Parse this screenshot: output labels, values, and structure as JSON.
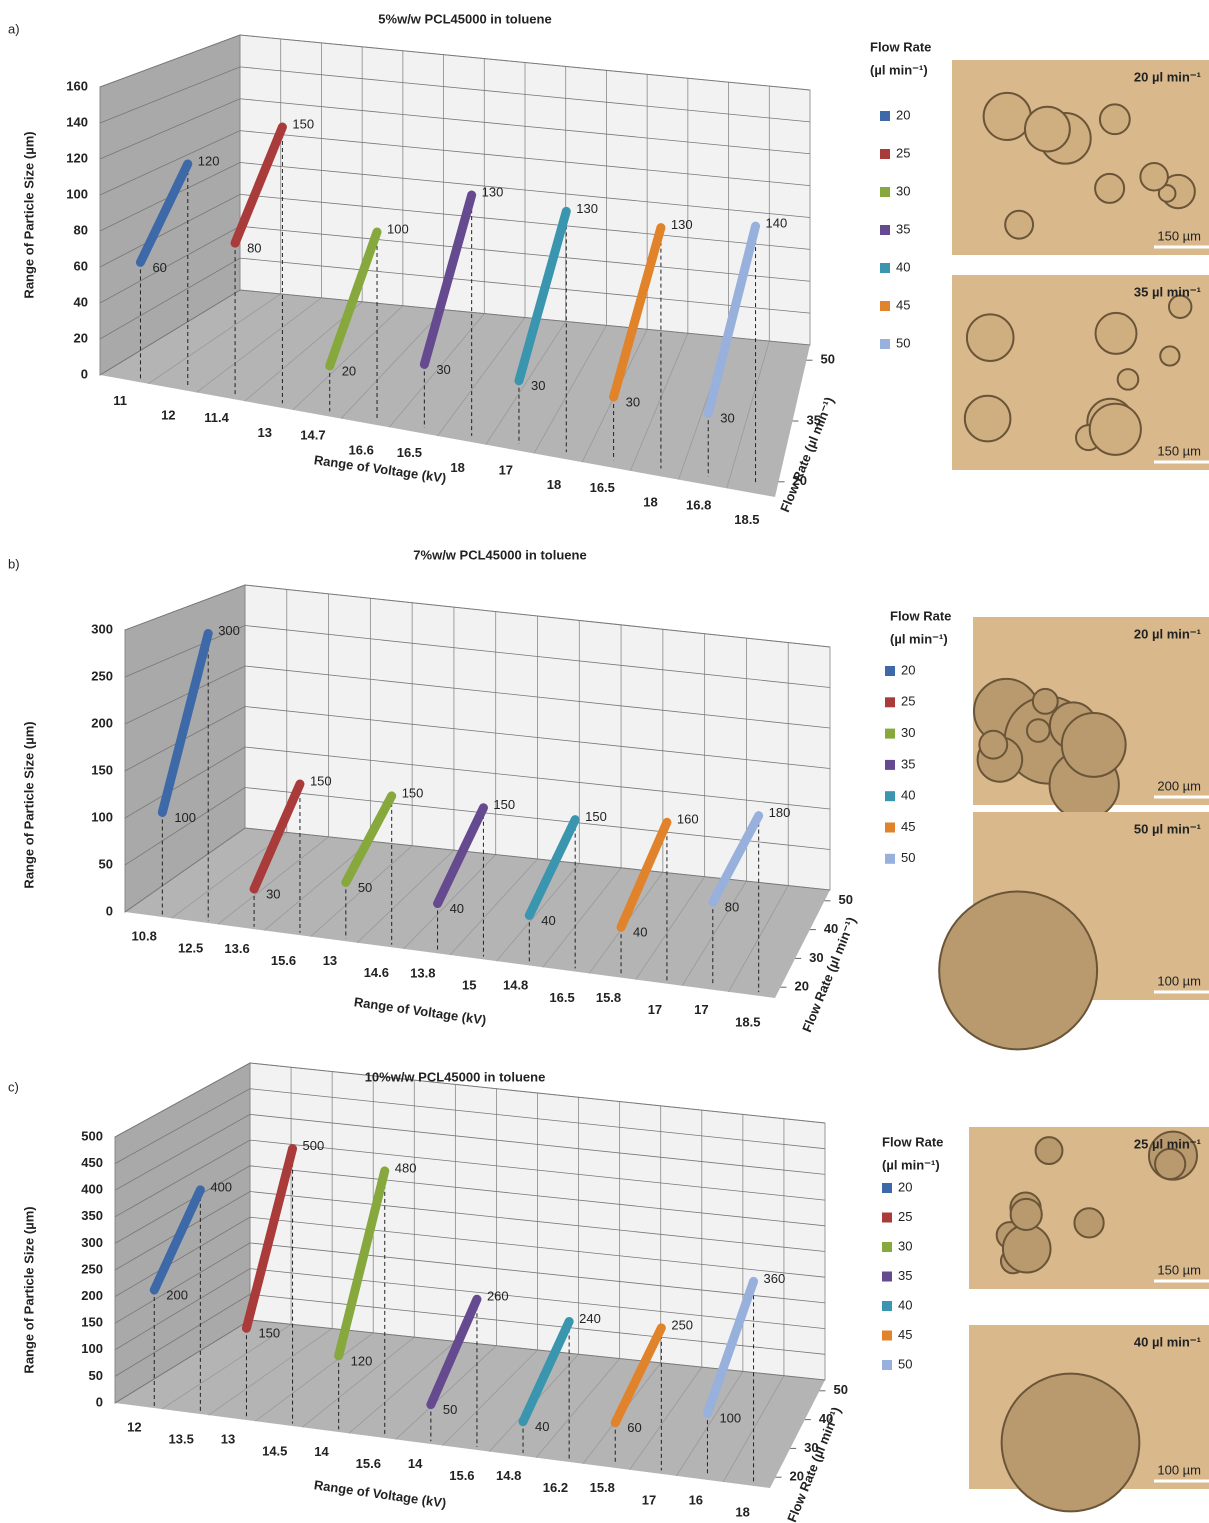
{
  "chart_data": [
    {
      "type": "range",
      "panel": "a)",
      "title": "5%w/w PCL45000 in toluene",
      "y_label": "Range of Particle Size (µm)",
      "x_label": "Range of Voltage (kV)",
      "z_label": "Flow Rate (µl min⁻¹)",
      "legend_title": [
        "Flow Rate",
        "(µl min⁻¹)"
      ],
      "ylim": [
        0,
        160
      ],
      "yticks": [
        0,
        20,
        40,
        60,
        80,
        100,
        120,
        140,
        160
      ],
      "zlim": [
        20,
        50
      ],
      "zticks": [
        20,
        35,
        50
      ],
      "series": [
        {
          "name": "20",
          "color": "#3d69a8",
          "values": [
            60,
            120
          ],
          "voltage": [
            "11",
            "12"
          ]
        },
        {
          "name": "25",
          "color": "#a93c3a",
          "values": [
            80,
            150
          ],
          "voltage": [
            "11.4",
            "13"
          ]
        },
        {
          "name": "30",
          "color": "#86a83c",
          "values": [
            20,
            100
          ],
          "voltage": [
            "14.7",
            "16.6"
          ]
        },
        {
          "name": "35",
          "color": "#664a8f",
          "values": [
            30,
            130
          ],
          "voltage": [
            "16.5",
            "18"
          ]
        },
        {
          "name": "40",
          "color": "#3996ae",
          "values": [
            30,
            130
          ],
          "voltage": [
            "17",
            "18"
          ]
        },
        {
          "name": "45",
          "color": "#e0832a",
          "values": [
            30,
            130
          ],
          "voltage": [
            "16.5",
            "18"
          ]
        },
        {
          "name": "50",
          "color": "#97b1dc",
          "values": [
            30,
            140
          ],
          "voltage": [
            "16.8",
            "18.5"
          ]
        }
      ],
      "images": [
        {
          "label": "20 µl min⁻¹",
          "scale": "150 µm"
        },
        {
          "label": "35 µl min⁻¹",
          "scale": "150 µm"
        }
      ]
    },
    {
      "type": "range",
      "panel": "b)",
      "title": "7%w/w PCL45000 in toluene",
      "y_label": "Range of Particle Size (µm)",
      "x_label": "Range of Voltage (kV)",
      "z_label": "Flow Rate (µl min⁻¹)",
      "legend_title": [
        "Flow Rate",
        "(µl min⁻¹)"
      ],
      "ylim": [
        0,
        300
      ],
      "yticks": [
        0,
        50,
        100,
        150,
        200,
        250,
        300
      ],
      "zlim": [
        20,
        50
      ],
      "zticks": [
        20,
        30,
        40,
        50
      ],
      "series": [
        {
          "name": "20",
          "color": "#3d69a8",
          "values": [
            100,
            300
          ],
          "voltage": [
            "10.8",
            "12.5"
          ]
        },
        {
          "name": "25",
          "color": "#a93c3a",
          "values": [
            30,
            150
          ],
          "voltage": [
            "13.6",
            "15.6"
          ]
        },
        {
          "name": "30",
          "color": "#86a83c",
          "values": [
            50,
            150
          ],
          "voltage": [
            "13",
            "14.6"
          ]
        },
        {
          "name": "35",
          "color": "#664a8f",
          "values": [
            40,
            150
          ],
          "voltage": [
            "13.8",
            "15"
          ]
        },
        {
          "name": "40",
          "color": "#3996ae",
          "values": [
            40,
            150
          ],
          "voltage": [
            "14.8",
            "16.5"
          ]
        },
        {
          "name": "45",
          "color": "#e0832a",
          "values": [
            40,
            160
          ],
          "voltage": [
            "15.8",
            "17"
          ]
        },
        {
          "name": "50",
          "color": "#97b1dc",
          "values": [
            80,
            180
          ],
          "voltage": [
            "17",
            "18.5"
          ]
        }
      ],
      "images": [
        {
          "label": "20 µl min⁻¹",
          "scale": "200 µm"
        },
        {
          "label": "50 µl min⁻¹",
          "scale": "100 µm"
        }
      ]
    },
    {
      "type": "range",
      "panel": "c)",
      "title": "10%w/w PCL45000 in toluene",
      "y_label": "Range of Particle Size (µm)",
      "x_label": "Range of Voltage (kV)",
      "z_label": "Flow Rate (µl min⁻¹)",
      "legend_title": [
        "Flow Rate",
        "(µl min⁻¹)"
      ],
      "ylim": [
        0,
        500
      ],
      "yticks": [
        0,
        50,
        100,
        150,
        200,
        250,
        300,
        350,
        400,
        450,
        500
      ],
      "zlim": [
        20,
        50
      ],
      "zticks": [
        20,
        30,
        40,
        50
      ],
      "series": [
        {
          "name": "20",
          "color": "#3d69a8",
          "values": [
            200,
            400
          ],
          "voltage": [
            "12",
            "13.5"
          ]
        },
        {
          "name": "25",
          "color": "#a93c3a",
          "values": [
            150,
            500
          ],
          "voltage": [
            "13",
            "14.5"
          ]
        },
        {
          "name": "30",
          "color": "#86a83c",
          "values": [
            120,
            480
          ],
          "voltage": [
            "14",
            "15.6"
          ]
        },
        {
          "name": "35",
          "color": "#664a8f",
          "values": [
            50,
            260
          ],
          "voltage": [
            "14",
            "15.6"
          ]
        },
        {
          "name": "40",
          "color": "#3996ae",
          "values": [
            40,
            240
          ],
          "voltage": [
            "14.8",
            "16.2"
          ]
        },
        {
          "name": "45",
          "color": "#e0832a",
          "values": [
            60,
            250
          ],
          "voltage": [
            "15.8",
            "17"
          ]
        },
        {
          "name": "50",
          "color": "#97b1dc",
          "values": [
            100,
            360
          ],
          "voltage": [
            "16",
            "18"
          ]
        }
      ],
      "images": [
        {
          "label": "25 µl min⁻¹",
          "scale": "150 µm"
        },
        {
          "label": "40 µl min⁻¹",
          "scale": "100 µm"
        }
      ]
    }
  ]
}
